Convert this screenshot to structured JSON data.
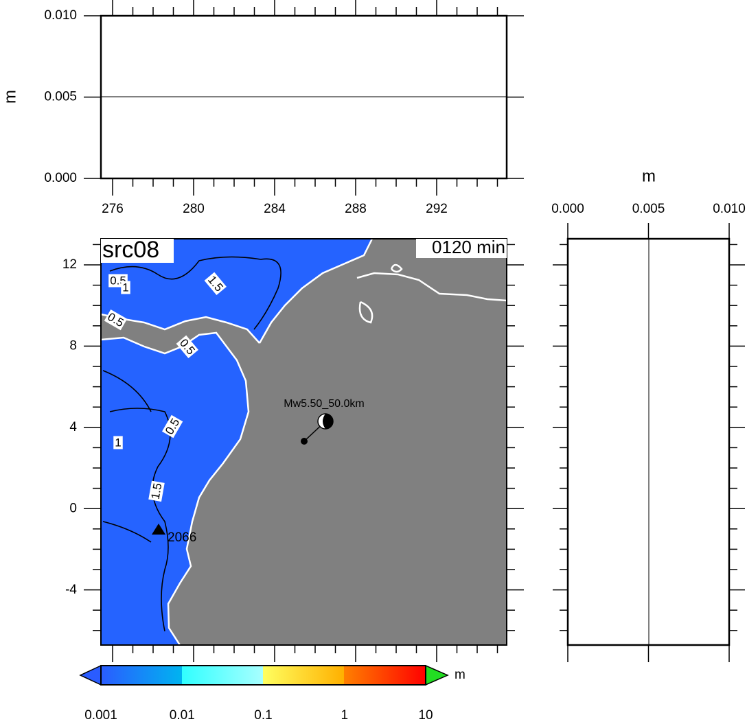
{
  "top_panel": {
    "y_label": "m",
    "yticks": [
      "0.000",
      "0.005",
      "0.010"
    ],
    "xticks": [
      "276",
      "280",
      "284",
      "288",
      "292"
    ]
  },
  "right_panel": {
    "x_label": "m",
    "xticks": [
      "0.000",
      "0.005",
      "0.010"
    ]
  },
  "map": {
    "title": "src08",
    "time": "0120 min",
    "yticks": [
      "12",
      "8",
      "4",
      "0",
      "-4"
    ],
    "contour_labels": [
      "0.5",
      "1",
      "0.5",
      "0.5",
      "1.5",
      "0.5",
      "1",
      "1.5"
    ],
    "source_label": "Mw5.50_50.0km",
    "station_label": "2066"
  },
  "colorbar": {
    "unit": "m",
    "ticks": [
      "0.001",
      "0.01",
      "0.1",
      "1",
      "10"
    ]
  }
}
